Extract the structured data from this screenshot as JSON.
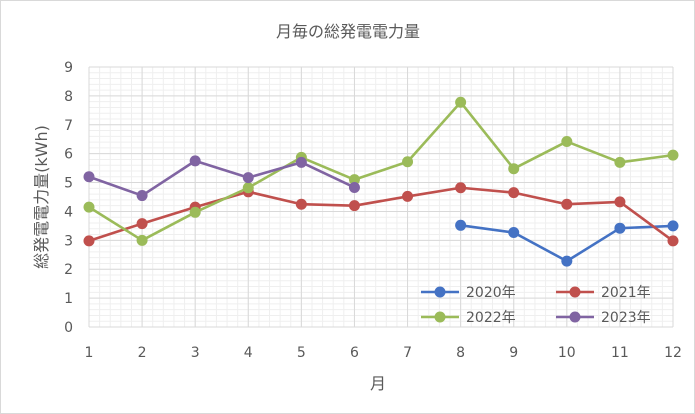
{
  "chart_data": {
    "type": "line",
    "title": "月毎の総発電電力量",
    "xlabel": "月",
    "ylabel": "総発電電力量(kWh)",
    "categories": [
      "1",
      "2",
      "3",
      "4",
      "5",
      "6",
      "7",
      "8",
      "9",
      "10",
      "11",
      "12"
    ],
    "ylim": [
      0,
      9
    ],
    "yticks": [
      "0",
      "1",
      "2",
      "3",
      "4",
      "5",
      "6",
      "7",
      "8",
      "9"
    ],
    "grid": "major-and-minor",
    "legend": "bottom-right",
    "series": [
      {
        "name": "2020年",
        "color": "#4472C4",
        "values": [
          null,
          null,
          null,
          null,
          null,
          null,
          null,
          3.52,
          3.27,
          2.28,
          3.42,
          3.5
        ]
      },
      {
        "name": "2021年",
        "color": "#C0504D",
        "values": [
          2.98,
          3.58,
          4.15,
          4.68,
          4.25,
          4.2,
          4.52,
          4.82,
          4.65,
          4.25,
          4.33,
          2.98
        ]
      },
      {
        "name": "2022年",
        "color": "#9BBB59",
        "values": [
          4.15,
          3.0,
          3.97,
          4.82,
          5.87,
          5.1,
          5.72,
          7.78,
          5.48,
          6.42,
          5.7,
          5.95
        ]
      },
      {
        "name": "2023年",
        "color": "#8064A2",
        "values": [
          5.2,
          4.55,
          5.75,
          5.17,
          5.7,
          4.83,
          null,
          null,
          null,
          null,
          null,
          null
        ]
      }
    ]
  }
}
